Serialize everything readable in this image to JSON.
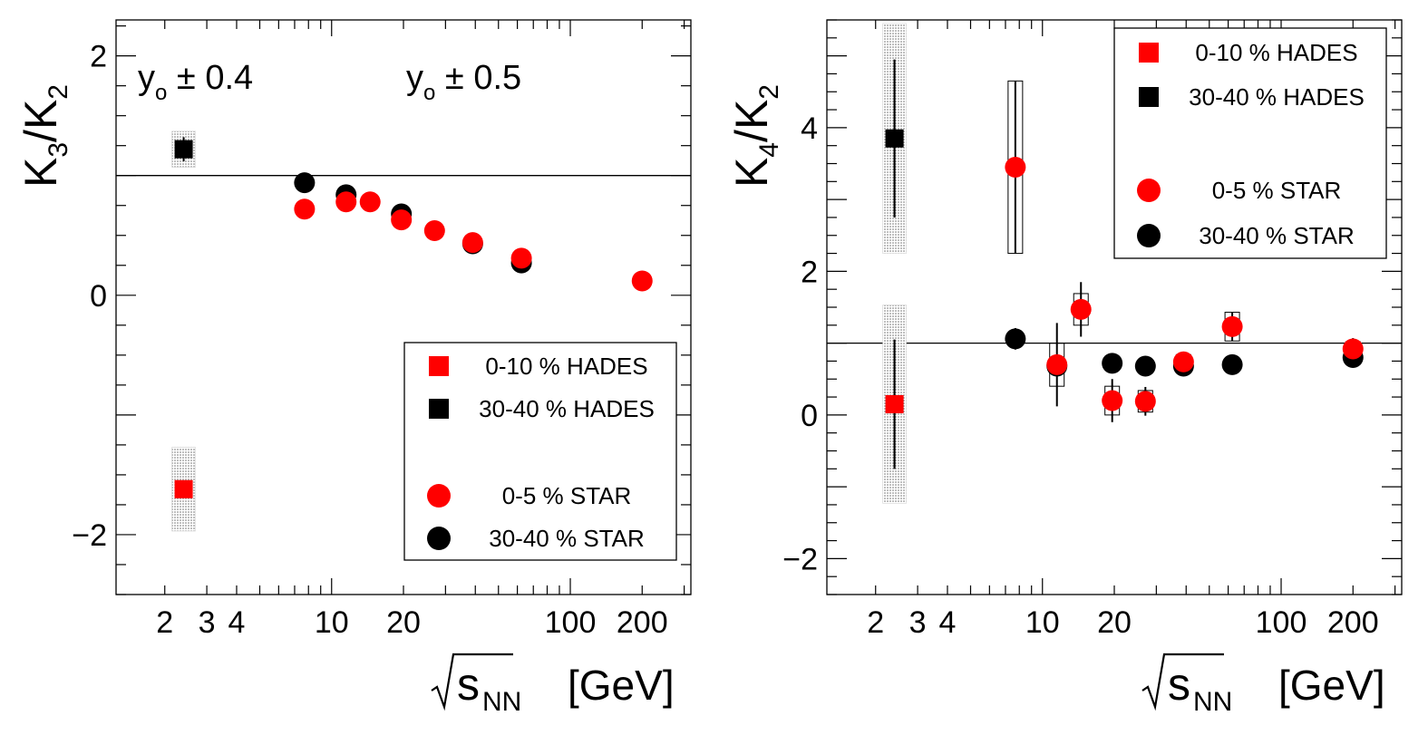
{
  "colors": {
    "star": "#ff0000",
    "hades_0_10": "#ff0000",
    "black": "#000000",
    "band": "#bbbbbb"
  },
  "chart_data": [
    {
      "type": "scatter",
      "ylabel_main": "K",
      "ylabel_num": "3",
      "ylabel_slash": "/K",
      "ylabel_den": "2",
      "xlabel_sqrt": "s",
      "xlabel_sub": "NN",
      "xlabel_unit": "[GeV]",
      "xscale": "log",
      "xlim": [
        1.25,
        320
      ],
      "ylim": [
        -2.5,
        2.3
      ],
      "xticks": [
        {
          "v": 2,
          "l": "2"
        },
        {
          "v": 3,
          "l": "3"
        },
        {
          "v": 4,
          "l": "4"
        },
        {
          "v": 10,
          "l": "10"
        },
        {
          "v": 20,
          "l": "20"
        },
        {
          "v": 100,
          "l": "100"
        },
        {
          "v": 200,
          "l": "200"
        }
      ],
      "yticks": [
        {
          "v": -2,
          "l": "−2"
        },
        {
          "v": 0,
          "l": "0"
        },
        {
          "v": 2,
          "l": "2"
        }
      ],
      "reference_line": 1,
      "annotations": [
        {
          "main": "y",
          "sub": "o",
          "rest": " ± 0.4",
          "pos": "top-left"
        },
        {
          "main": "y",
          "sub": "o",
          "rest": " ± 0.5",
          "pos": "top-center"
        }
      ],
      "legend": {
        "position": "bottom-right",
        "entries": [
          {
            "label": "0-10 % HADES",
            "marker": "square",
            "color": "#ff0000"
          },
          {
            "label": "30-40 % HADES",
            "marker": "square",
            "color": "#000000"
          },
          {
            "label": "0-5 % STAR",
            "marker": "circle",
            "color": "#ff0000"
          },
          {
            "label": "30-40 % STAR",
            "marker": "circle",
            "color": "#000000"
          }
        ]
      },
      "series": [
        {
          "name": "30-40 % HADES",
          "marker": "square",
          "color": "#000000",
          "points": [
            {
              "x": 2.4,
              "y": 1.22,
              "err": 0.1,
              "sys": 0.15
            }
          ]
        },
        {
          "name": "0-10 % HADES",
          "marker": "square",
          "color": "#ff0000",
          "points": [
            {
              "x": 2.4,
              "y": -1.62,
              "err": 0.05,
              "sys": 0.35
            }
          ]
        },
        {
          "name": "30-40 % STAR",
          "marker": "circle",
          "color": "#000000",
          "points": [
            {
              "x": 7.7,
              "y": 0.94
            },
            {
              "x": 11.5,
              "y": 0.84
            },
            {
              "x": 19.6,
              "y": 0.68
            },
            {
              "x": 39,
              "y": 0.43
            },
            {
              "x": 62.4,
              "y": 0.27
            }
          ]
        },
        {
          "name": "0-5 % STAR",
          "marker": "circle",
          "color": "#ff0000",
          "points": [
            {
              "x": 7.7,
              "y": 0.72
            },
            {
              "x": 11.5,
              "y": 0.78
            },
            {
              "x": 14.5,
              "y": 0.78
            },
            {
              "x": 19.6,
              "y": 0.63
            },
            {
              "x": 27,
              "y": 0.54
            },
            {
              "x": 39,
              "y": 0.44
            },
            {
              "x": 62.4,
              "y": 0.31
            },
            {
              "x": 200,
              "y": 0.12
            }
          ]
        }
      ]
    },
    {
      "type": "scatter",
      "ylabel_main": "K",
      "ylabel_num": "4",
      "ylabel_slash": "/K",
      "ylabel_den": "2",
      "xlabel_sqrt": "s",
      "xlabel_sub": "NN",
      "xlabel_unit": "[GeV]",
      "xscale": "log",
      "xlim": [
        1.25,
        320
      ],
      "ylim": [
        -2.5,
        5.5
      ],
      "xticks": [
        {
          "v": 2,
          "l": "2"
        },
        {
          "v": 3,
          "l": "3"
        },
        {
          "v": 4,
          "l": "4"
        },
        {
          "v": 10,
          "l": "10"
        },
        {
          "v": 20,
          "l": "20"
        },
        {
          "v": 100,
          "l": "100"
        },
        {
          "v": 200,
          "l": "200"
        }
      ],
      "yticks": [
        {
          "v": -2,
          "l": "−2"
        },
        {
          "v": 0,
          "l": "0"
        },
        {
          "v": 2,
          "l": "2"
        },
        {
          "v": 4,
          "l": "4"
        }
      ],
      "reference_line": 1,
      "annotations": [],
      "legend": {
        "position": "top-right",
        "entries": [
          {
            "label": "0-10 % HADES",
            "marker": "square",
            "color": "#ff0000"
          },
          {
            "label": "30-40 % HADES",
            "marker": "square",
            "color": "#000000"
          },
          {
            "label": "0-5 % STAR",
            "marker": "circle",
            "color": "#ff0000"
          },
          {
            "label": "30-40 % STAR",
            "marker": "circle",
            "color": "#000000"
          }
        ]
      },
      "series": [
        {
          "name": "30-40 % HADES",
          "marker": "square",
          "color": "#000000",
          "points": [
            {
              "x": 2.4,
              "y": 3.85,
              "err": 1.1,
              "sys": 1.6
            }
          ]
        },
        {
          "name": "0-10 % HADES",
          "marker": "square",
          "color": "#ff0000",
          "points": [
            {
              "x": 2.4,
              "y": 0.15,
              "err": 0.9,
              "sys": 1.38
            }
          ]
        },
        {
          "name": "30-40 % STAR",
          "marker": "circle",
          "color": "#000000",
          "points": [
            {
              "x": 7.7,
              "y": 1.06,
              "err": 0.15
            },
            {
              "x": 11.5,
              "y": 0.68
            },
            {
              "x": 19.6,
              "y": 0.72
            },
            {
              "x": 27,
              "y": 0.68
            },
            {
              "x": 39,
              "y": 0.68
            },
            {
              "x": 62.4,
              "y": 0.7
            },
            {
              "x": 200,
              "y": 0.8
            }
          ]
        },
        {
          "name": "0-5 % STAR",
          "marker": "circle",
          "color": "#ff0000",
          "points": [
            {
              "x": 7.7,
              "y": 3.45,
              "err": 1.2,
              "sys": 1.2
            },
            {
              "x": 11.5,
              "y": 0.7,
              "err": 0.58,
              "sys": 0.3
            },
            {
              "x": 14.5,
              "y": 1.47,
              "err": 0.38,
              "sys": 0.22
            },
            {
              "x": 19.6,
              "y": 0.2,
              "err": 0.3,
              "sys": 0.2
            },
            {
              "x": 27,
              "y": 0.19,
              "err": 0.2,
              "sys": 0.15
            },
            {
              "x": 39,
              "y": 0.74,
              "err": 0.1,
              "sys": 0.1
            },
            {
              "x": 62.4,
              "y": 1.23,
              "err": 0.2,
              "sys": 0.2
            },
            {
              "x": 200,
              "y": 0.92,
              "err": 0.15,
              "sys": 0.1
            }
          ]
        }
      ]
    }
  ]
}
